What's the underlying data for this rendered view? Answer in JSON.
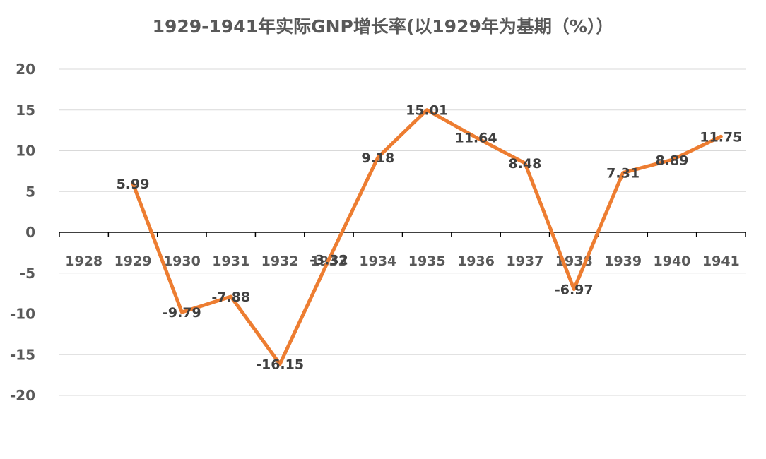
{
  "chart_data": {
    "type": "line",
    "title": "1929-1941年实际GNP增长率(以1929年为基期（%））",
    "categories": [
      "1928",
      "1929",
      "1930",
      "1931",
      "1932",
      "1933",
      "1934",
      "1935",
      "1936",
      "1937",
      "1938",
      "1939",
      "1940",
      "1941"
    ],
    "series": [
      {
        "values": [
          null,
          5.99,
          -9.79,
          -7.88,
          -16.15,
          -3.32,
          9.18,
          15.01,
          11.64,
          8.48,
          -6.97,
          7.31,
          8.89,
          11.75
        ],
        "labels": [
          "",
          "5.99",
          "-9.79",
          "-7.88",
          "-16.15",
          "-3.32",
          "9.18",
          "15.01",
          "11.64",
          "8.48",
          "-6.97",
          "7.31",
          "8.89",
          "11.75"
        ],
        "color": "#ED7D31"
      }
    ],
    "ylim": [
      -20,
      20
    ],
    "yticks": [
      "20",
      "15",
      "10",
      "5",
      "0",
      "-5",
      "-10",
      "-15",
      "-20"
    ],
    "grid": true,
    "gridColor": "#D9D9D9",
    "axisColor": "#000000"
  }
}
